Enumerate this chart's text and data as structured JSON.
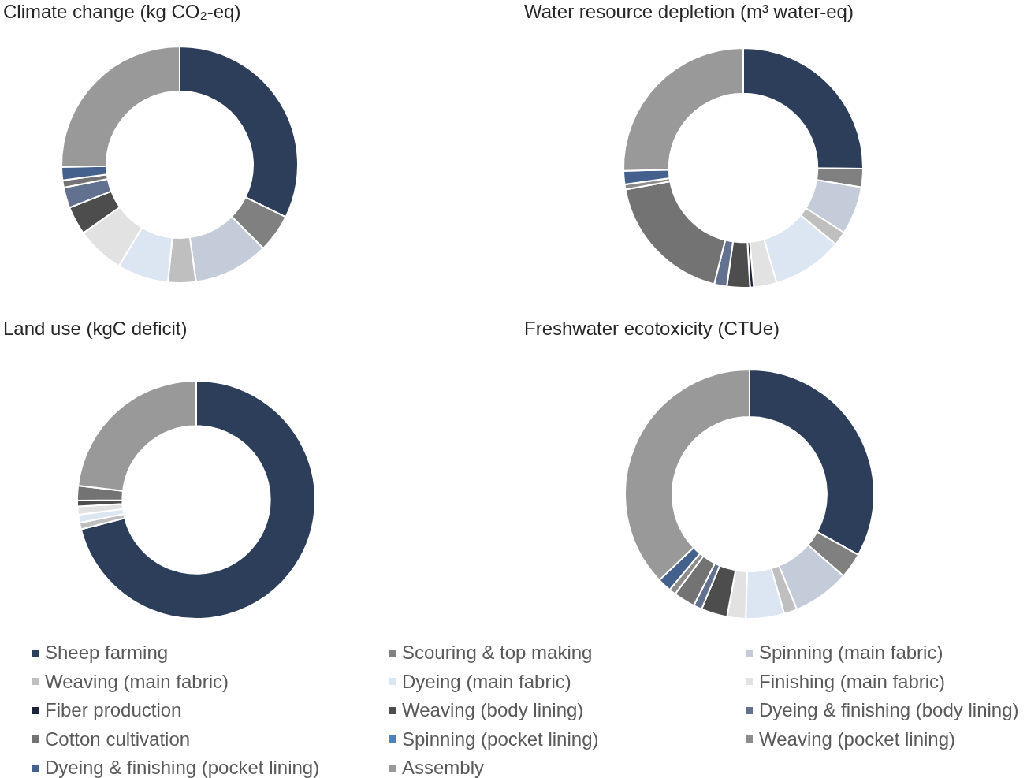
{
  "chart_data": [
    {
      "type": "donut",
      "title": "Climate change (kg CO₂-eq)",
      "categories": [
        "Sheep farming",
        "Scouring & top making",
        "Spinning (main fabric)",
        "Weaving (main fabric)",
        "Dyeing (main fabric)",
        "Finishing (main fabric)",
        "Fiber production",
        "Weaving (body lining)",
        "Dyeing & finishing (body lining)",
        "Cotton cultivation",
        "Spinning (pocket lining)",
        "Weaving (pocket lining)",
        "Dyeing & finishing (pocket lining)",
        "Assembly"
      ],
      "values": [
        32.3,
        5.2,
        10.3,
        3.8,
        7.0,
        6.6,
        null,
        3.9,
        2.8,
        1.0,
        null,
        null,
        1.8,
        25.3
      ],
      "colors": [
        "#2c3e5a",
        "#808080",
        "#c5ccd9",
        "#bfbfbf",
        "#dce6f2",
        "#e2e2e2",
        "#1b2537",
        "#4d4d4d",
        "#62718f",
        "#737373",
        "#4f81bd",
        "#8c8c8c",
        "#43618c",
        "#999999"
      ],
      "legend": "bottom"
    },
    {
      "type": "donut",
      "title": "Water resource depletion (m³ water-eq)",
      "categories": [
        null,
        null,
        null,
        null,
        null,
        null,
        null,
        null,
        null,
        null,
        null,
        null,
        null,
        null
      ],
      "values": [
        25.1,
        2.5,
        6.5,
        1.9,
        9.5,
        3.1,
        0.5,
        3.1,
        1.7,
        18.2,
        null,
        0.7,
        1.8,
        25.4
      ],
      "colors": [
        "#2c3e5a",
        "#808080",
        "#c5ccd9",
        "#bfbfbf",
        "#dce6f2",
        "#e2e2e2",
        "#1b2537",
        "#4d4d4d",
        "#62718f",
        "#737373",
        "#4f81bd",
        "#8c8c8c",
        "#43618c",
        "#999999"
      ]
    },
    {
      "type": "donut",
      "title": "Land use (kgC deficit)",
      "categories": [
        null,
        null,
        null,
        null,
        null,
        null,
        null,
        null,
        null,
        null,
        null,
        null,
        null,
        null
      ],
      "values": [
        71.0,
        null,
        null,
        0.9,
        1.1,
        1.1,
        null,
        0.8,
        null,
        2.0,
        null,
        null,
        null,
        23.1
      ],
      "colors": [
        "#2c3e5a",
        "#808080",
        "#c5ccd9",
        "#bfbfbf",
        "#dce6f2",
        "#e2e2e2",
        "#1b2537",
        "#4d4d4d",
        "#62718f",
        "#737373",
        "#4f81bd",
        "#8c8c8c",
        "#43618c",
        "#999999"
      ]
    },
    {
      "type": "donut",
      "title": "Freshwater ecotoxicity (CTUe)",
      "categories": [
        null,
        null,
        null,
        null,
        null,
        null,
        null,
        null,
        null,
        null,
        null,
        null,
        null,
        null
      ],
      "values": [
        33.1,
        3.3,
        7.4,
        1.7,
        5.0,
        2.4,
        null,
        3.4,
        1.1,
        2.8,
        null,
        0.9,
        1.8,
        37.1
      ],
      "colors": [
        "#2c3e5a",
        "#808080",
        "#c5ccd9",
        "#bfbfbf",
        "#dce6f2",
        "#e2e2e2",
        "#1b2537",
        "#4d4d4d",
        "#62718f",
        "#737373",
        "#4f81bd",
        "#8c8c8c",
        "#43618c",
        "#999999"
      ]
    }
  ]
}
